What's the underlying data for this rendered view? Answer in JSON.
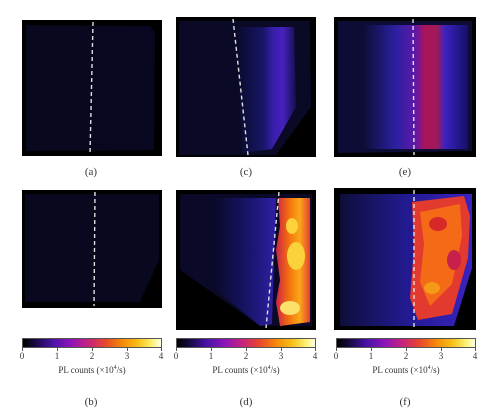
{
  "panels": [
    {
      "id": "a",
      "caption": "(a)",
      "pl_level": 0.05
    },
    {
      "id": "c",
      "caption": "(c)",
      "pl_level": 0.35
    },
    {
      "id": "e",
      "caption": "(e)",
      "pl_level": 0.6
    },
    {
      "id": "b",
      "caption": "(b)",
      "pl_level": 0.04
    },
    {
      "id": "d",
      "caption": "(d)",
      "pl_level": 0.9
    },
    {
      "id": "f",
      "caption": "(f)",
      "pl_level": 0.65
    }
  ],
  "colorbar": {
    "ticks": [
      "0",
      "1",
      "2",
      "3",
      "4"
    ],
    "label_prefix": "PL counts (×10",
    "label_exp": "4",
    "label_suffix": "/s)",
    "colormap": "inferno-like (black → purple → red → orange → yellow → white)"
  },
  "colors": {
    "background": "#ffffff",
    "sample_dark": "#06061e",
    "dashed_line": "#e0e0e0"
  }
}
